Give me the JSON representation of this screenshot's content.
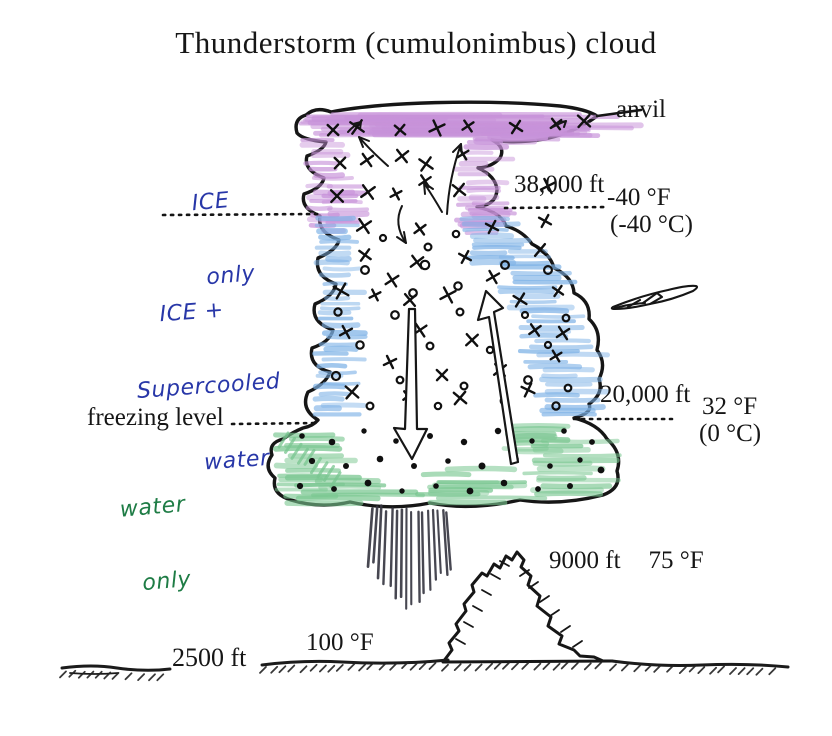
{
  "title": "Thunderstorm (cumulonimbus) cloud",
  "cloud": {
    "anvil_label": "anvil",
    "upper_zone": {
      "line1": "ICE",
      "line2": "only"
    },
    "middle_zone": {
      "line1": "ICE +",
      "line2": "Supercooled",
      "line3": "water"
    },
    "lower_zone": {
      "line1": "water",
      "line2": "only"
    }
  },
  "altitude_markers": {
    "level_38000": {
      "altitude": "38,000 ft",
      "temp_f": "-40 °F",
      "temp_c": "(-40 °C)"
    },
    "level_20000": {
      "altitude": "20,000 ft",
      "temp_f": "32 °F",
      "temp_c": "(0 °C)"
    },
    "freezing_level_label": "freezing level"
  },
  "surface": {
    "mountain_altitude": "9000 ft",
    "mountain_temp": "75 °F",
    "plain_temp": "100 °F",
    "plain_altitude": "2500 ft"
  },
  "colors": {
    "ink": "#161616",
    "crayon_purple": "#c792d9",
    "crayon_blue": "#7eb2e6",
    "crayon_green": "#79c690",
    "pen_blue": "#2837a8",
    "pen_green": "#1e7c45",
    "rain": "#34343f"
  }
}
